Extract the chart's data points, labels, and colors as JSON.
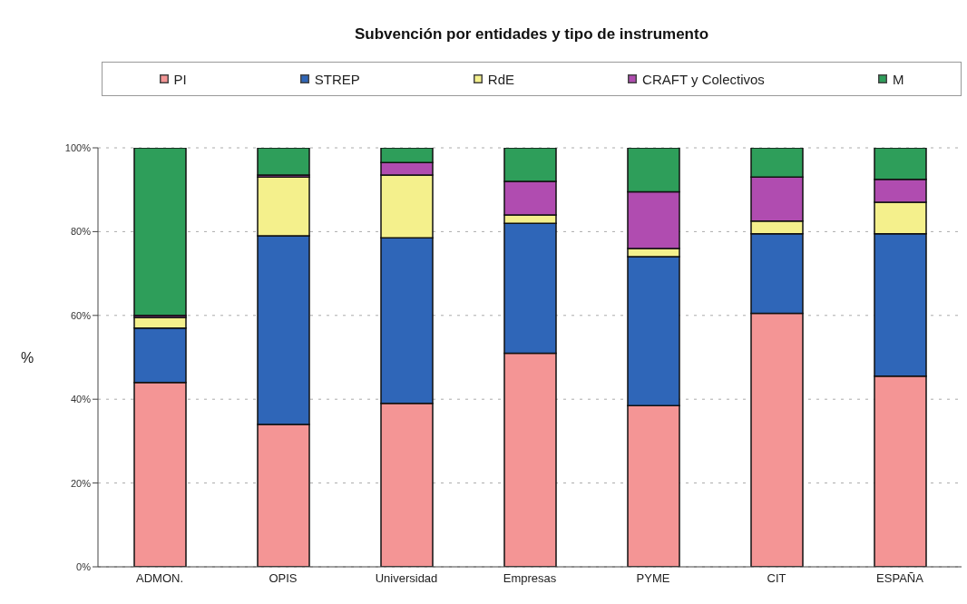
{
  "chart_data": {
    "type": "bar",
    "stacked": true,
    "title": "Subvención por entidades y tipo de instrumento",
    "ylabel": "%",
    "categories": [
      "ADMON.",
      "OPIS",
      "Universidad",
      "Empresas",
      "PYME",
      "CIT",
      "ESPAÑA"
    ],
    "series": [
      {
        "name": "PI",
        "color": "#f49595",
        "values": [
          44,
          34,
          39,
          51,
          38.5,
          60.5,
          45.5
        ]
      },
      {
        "name": "STREP",
        "color": "#2f66b8",
        "values": [
          13,
          45,
          39.5,
          31,
          35.5,
          19,
          34
        ]
      },
      {
        "name": "RdE",
        "color": "#f4f08c",
        "values": [
          2.5,
          14,
          15,
          2,
          2,
          3,
          7.5
        ]
      },
      {
        "name": "CRAFT y Colectivos",
        "color": "#b04cb0",
        "values": [
          0.5,
          0.5,
          3,
          8,
          13.5,
          10.5,
          5.5
        ]
      },
      {
        "name": "M",
        "color": "#2e9e5a",
        "values": [
          40,
          6.5,
          3.5,
          8,
          10.5,
          7,
          7.5
        ]
      }
    ],
    "ylim": [
      0,
      100
    ],
    "yticks": [
      {
        "value": 0,
        "label": "0%"
      },
      {
        "value": 20,
        "label": "20%"
      },
      {
        "value": 40,
        "label": "40%"
      },
      {
        "value": 60,
        "label": "60%"
      },
      {
        "value": 80,
        "label": "80%"
      },
      {
        "value": 100,
        "label": "100%"
      }
    ],
    "grid": "y",
    "legend": "top"
  }
}
